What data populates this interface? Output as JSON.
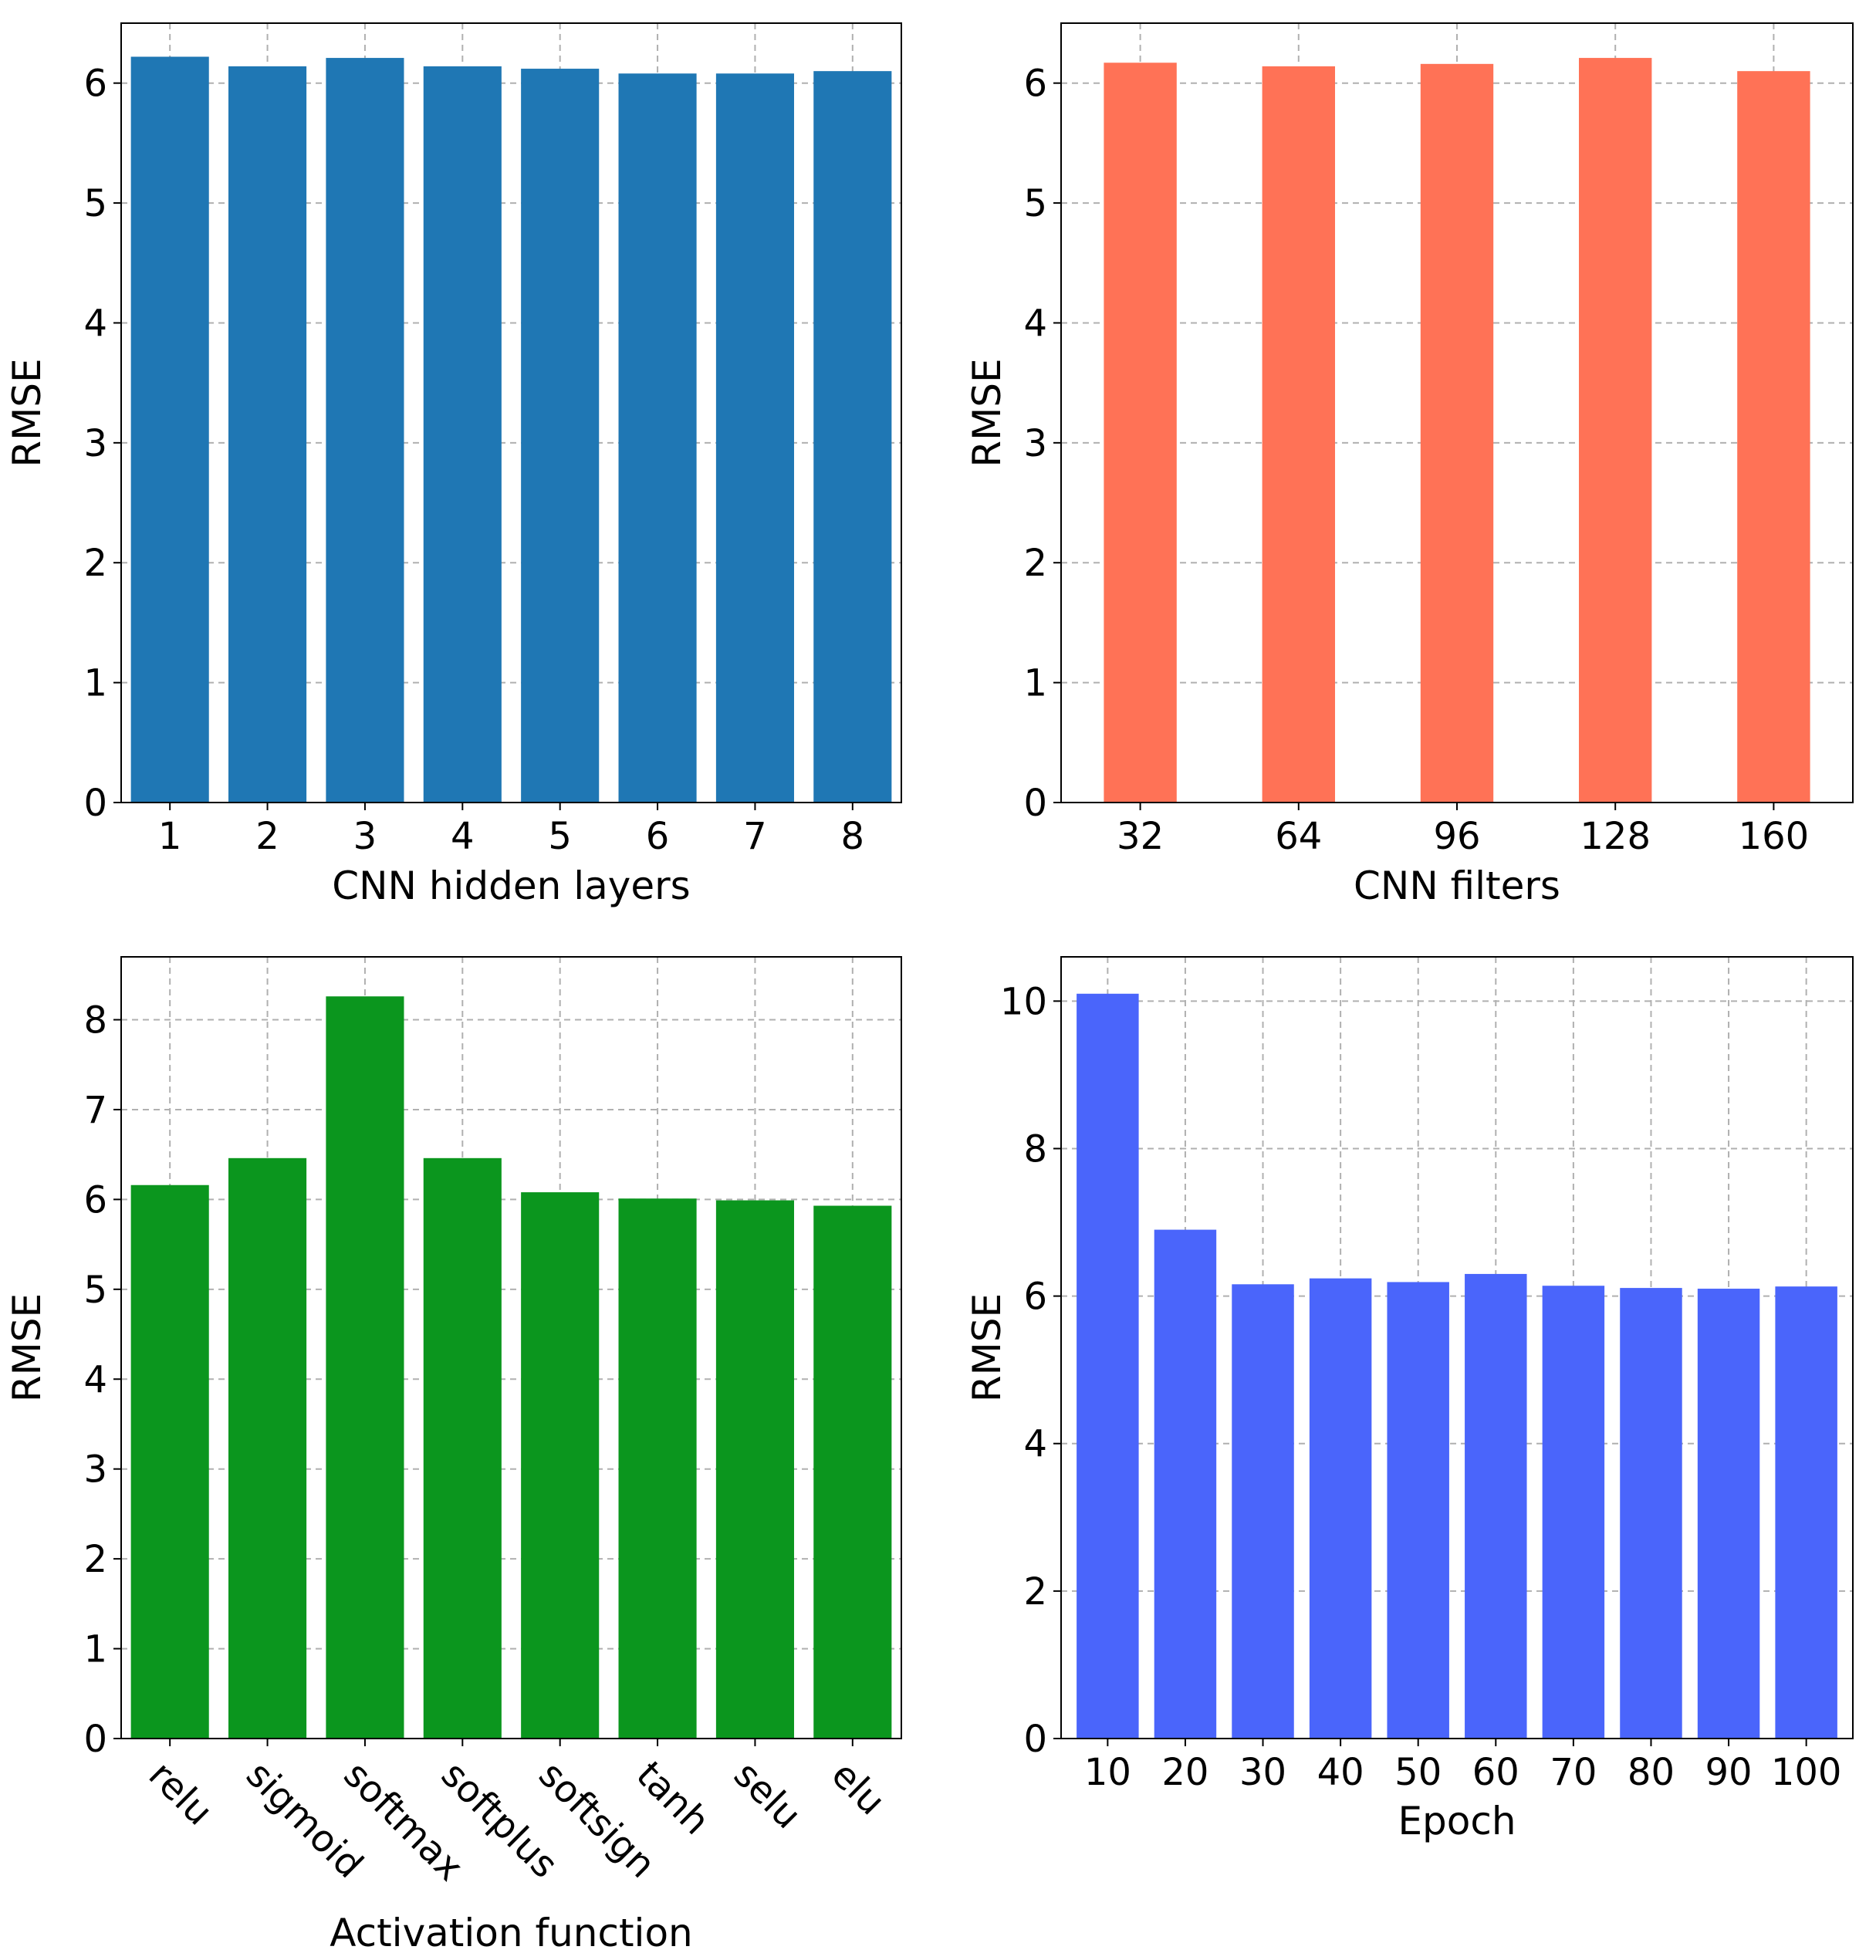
{
  "chart_data": [
    {
      "type": "bar",
      "categories": [
        "1",
        "2",
        "3",
        "4",
        "5",
        "6",
        "7",
        "8"
      ],
      "values": [
        6.22,
        6.14,
        6.21,
        6.14,
        6.12,
        6.08,
        6.08,
        6.1
      ],
      "xlabel": "CNN hidden layers",
      "ylabel": "RMSE",
      "ylim": [
        0,
        6.5
      ],
      "yticks": [
        0,
        1,
        2,
        3,
        4,
        5,
        6
      ],
      "color": "#1f77b4",
      "grid": true,
      "rotate_xticks": false
    },
    {
      "type": "bar",
      "categories": [
        "32",
        "64",
        "96",
        "128",
        "160"
      ],
      "values": [
        6.17,
        6.14,
        6.16,
        6.21,
        6.1
      ],
      "xlabel": "CNN filters",
      "ylabel": "RMSE",
      "ylim": [
        0,
        6.5
      ],
      "yticks": [
        0,
        1,
        2,
        3,
        4,
        5,
        6
      ],
      "color": "#ff7256",
      "grid": true,
      "rotate_xticks": false
    },
    {
      "type": "bar",
      "categories": [
        "relu",
        "sigmoid",
        "softmax",
        "softplus",
        "softsign",
        "tanh",
        "selu",
        "elu"
      ],
      "values": [
        6.16,
        6.46,
        8.26,
        6.46,
        6.08,
        6.01,
        5.99,
        5.93
      ],
      "xlabel": "Activation function",
      "ylabel": "RMSE",
      "ylim": [
        0,
        8.7
      ],
      "yticks": [
        0,
        1,
        2,
        3,
        4,
        5,
        6,
        7,
        8
      ],
      "color": "#0b961e",
      "grid": true,
      "rotate_xticks": true
    },
    {
      "type": "bar",
      "categories": [
        "10",
        "20",
        "30",
        "40",
        "50",
        "60",
        "70",
        "80",
        "90",
        "100"
      ],
      "values": [
        10.1,
        6.9,
        6.16,
        6.24,
        6.19,
        6.3,
        6.14,
        6.11,
        6.1,
        6.13
      ],
      "xlabel": "Epoch",
      "ylabel": "RMSE",
      "ylim": [
        0,
        10.6
      ],
      "yticks": [
        0,
        2,
        4,
        6,
        8,
        10
      ],
      "color": "#4a65fb",
      "grid": true,
      "rotate_xticks": false
    }
  ]
}
